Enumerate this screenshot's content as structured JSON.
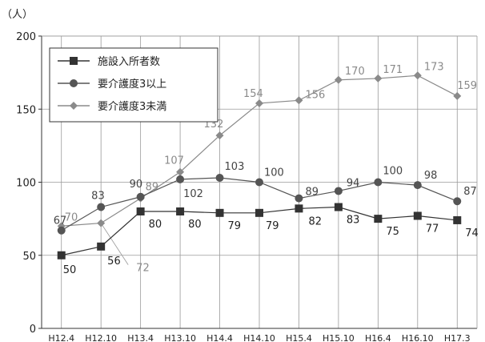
{
  "chart_data": {
    "type": "line",
    "unit_label": "（人）",
    "categories": [
      "H12.4",
      "H12.10",
      "H13.4",
      "H13.10",
      "H14.4",
      "H14.10",
      "H15.4",
      "H15.10",
      "H16.4",
      "H16.10",
      "H17.3"
    ],
    "ylim": [
      0,
      200
    ],
    "yticks": [
      0,
      50,
      100,
      150,
      200
    ],
    "grid": true,
    "legend_position": "top-left",
    "series": [
      {
        "name": "施設入所者数",
        "values": [
          50,
          56,
          80,
          80,
          79,
          79,
          82,
          83,
          75,
          77,
          74
        ],
        "color": "#333333",
        "marker": "square"
      },
      {
        "name": "要介護度3以上",
        "values": [
          67,
          83,
          90,
          102,
          103,
          100,
          89,
          94,
          100,
          98,
          87
        ],
        "color": "#555555",
        "marker": "circle"
      },
      {
        "name": "要介護度3未満",
        "values": [
          70,
          72,
          89,
          107,
          132,
          154,
          156,
          170,
          171,
          173,
          159
        ],
        "color": "#8a8a8a",
        "marker": "diamond"
      }
    ]
  }
}
